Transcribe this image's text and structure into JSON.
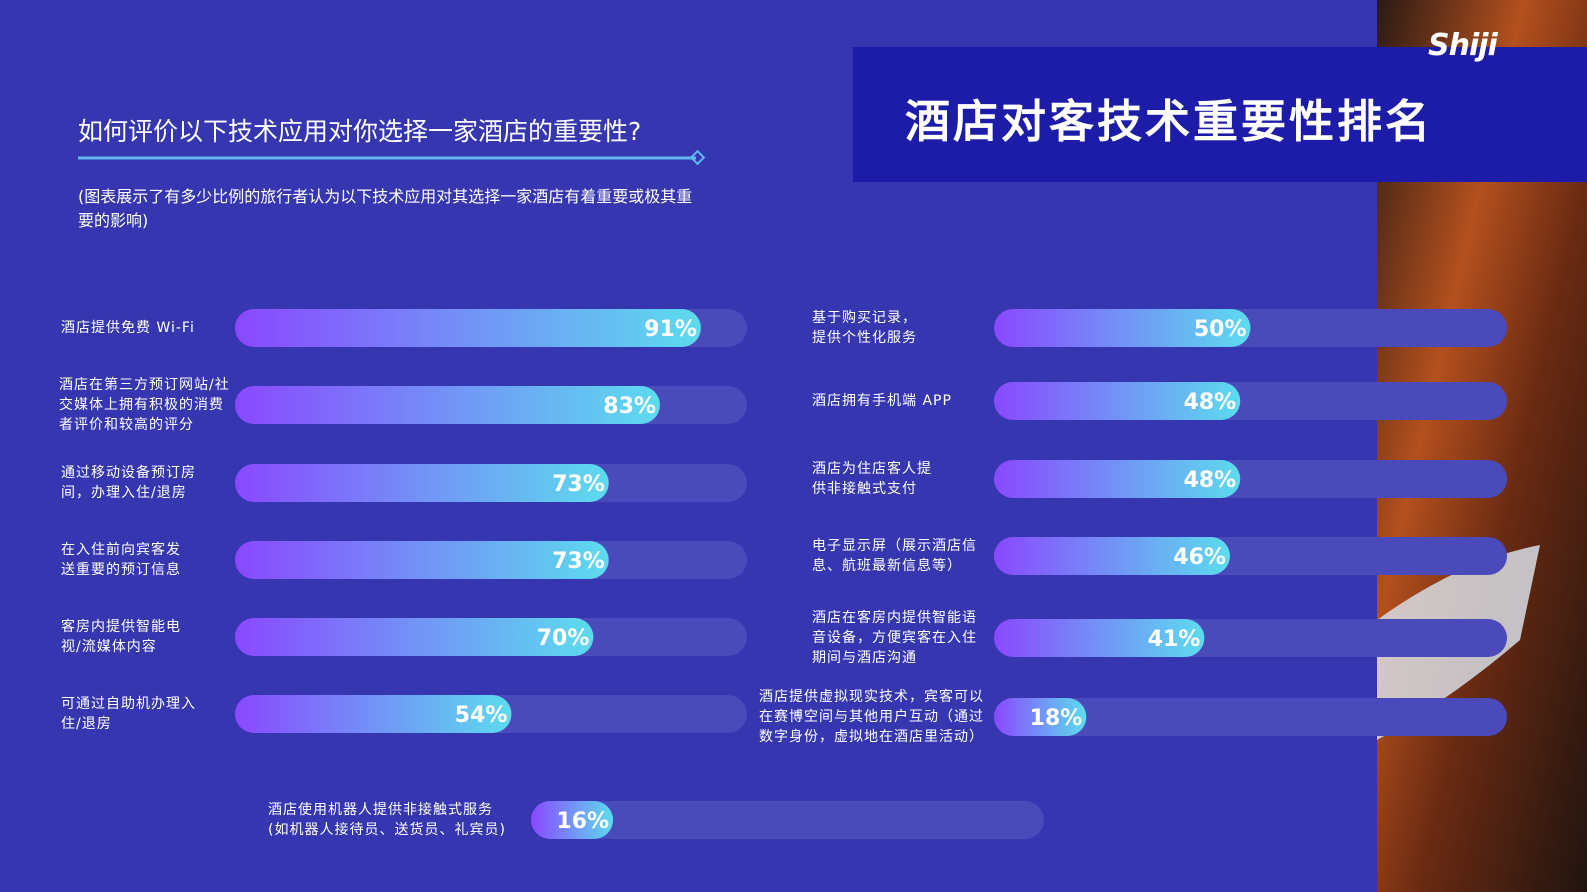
{
  "header": {
    "title": "酒店对客技术重要性排名",
    "logo": "Shiji",
    "question": "如何评价以下技术应用对你选择一家酒店的重要性?",
    "note": "(图表展示了有多少比例的旅行者认为以下技术应用对其选择一家酒店有着重要或极其重要的影响)"
  },
  "chart_data": [
    {
      "type": "bar",
      "orientation": "horizontal",
      "xlim": [
        0,
        100
      ],
      "gradient": [
        "#8a48ff",
        "#5cdcee"
      ],
      "categories": [
        "酒店提供免费 Wi-Fi",
        "酒店在第三方预订网站/社\n交媒体上拥有积极的消费\n者评价和较高的评分",
        "通过移动设备预订房\n间，办理入住/退房",
        "在入住前向宾客发\n送重要的预订信息",
        "客房内提供智能电\n视/流媒体内容",
        "可通过自助机办理入\n住/退房"
      ],
      "values": [
        91,
        83,
        73,
        73,
        70,
        54
      ],
      "value_labels": [
        "91%",
        "83%",
        "73%",
        "73%",
        "70%",
        "54%"
      ]
    },
    {
      "type": "bar",
      "orientation": "horizontal",
      "xlim": [
        0,
        100
      ],
      "gradient": [
        "#8a48ff",
        "#5cdcee"
      ],
      "categories": [
        "基于购买记录，\n提供个性化服务",
        "酒店拥有手机端 APP",
        "酒店为住店客人提\n供非接触式支付",
        "电子显示屏（展示酒店信\n息、航班最新信息等）",
        "酒店在客房内提供智能语\n音设备，方便宾客在入住\n期间与酒店沟通",
        "酒店提供虚拟现实技术，宾客可以\n在赛博空间与其他用户互动（通过\n数字身份，虚拟地在酒店里活动）"
      ],
      "values": [
        50,
        48,
        48,
        46,
        41,
        18
      ],
      "value_labels": [
        "50%",
        "48%",
        "48%",
        "46%",
        "41%",
        "18%"
      ]
    },
    {
      "type": "bar",
      "orientation": "horizontal",
      "xlim": [
        0,
        100
      ],
      "gradient": [
        "#8a48ff",
        "#5cdcee"
      ],
      "categories": [
        "酒店使用机器人提供非接触式服务\n(如机器人接待员、送货员、礼宾员)"
      ],
      "values": [
        16
      ],
      "value_labels": [
        "16%"
      ]
    }
  ]
}
